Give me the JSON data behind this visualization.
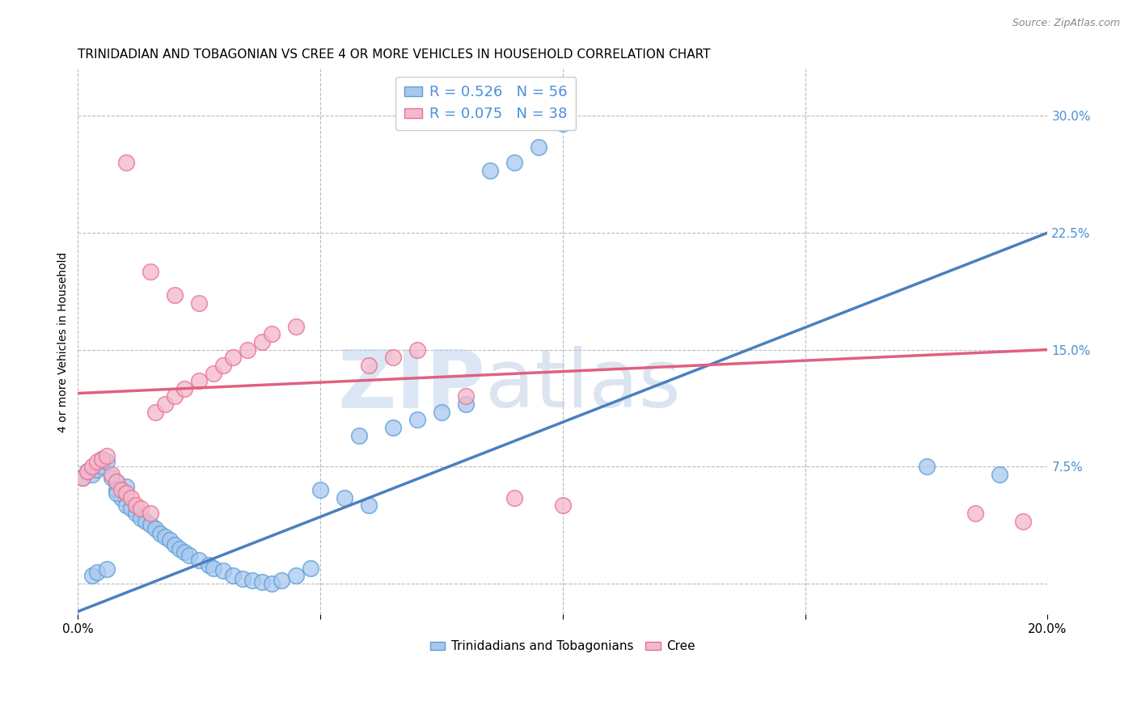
{
  "title": "TRINIDADIAN AND TOBAGONIAN VS CREE 4 OR MORE VEHICLES IN HOUSEHOLD CORRELATION CHART",
  "source": "Source: ZipAtlas.com",
  "ylabel": "4 or more Vehicles in Household",
  "xlim": [
    0.0,
    0.2
  ],
  "ylim": [
    -0.02,
    0.33
  ],
  "xticks": [
    0.0,
    0.05,
    0.1,
    0.15,
    0.2
  ],
  "xticklabels": [
    "0.0%",
    "",
    "",
    "",
    "20.0%"
  ],
  "yticks": [
    0.0,
    0.075,
    0.15,
    0.225,
    0.3
  ],
  "yticklabels": [
    "",
    "7.5%",
    "15.0%",
    "22.5%",
    "30.0%"
  ],
  "blue_R": 0.526,
  "blue_N": 56,
  "pink_R": 0.075,
  "pink_N": 38,
  "blue_color": "#A8C8F0",
  "pink_color": "#F4B8CC",
  "blue_edge_color": "#5A9FD4",
  "pink_edge_color": "#E87090",
  "blue_line_color": "#4A7FC0",
  "pink_line_color": "#E06080",
  "legend_label_blue": "Trinidadians and Tobagonians",
  "legend_label_pink": "Cree",
  "watermark_zip": "ZIP",
  "watermark_atlas": "atlas",
  "blue_line_x0": 0.0,
  "blue_line_y0": -0.018,
  "blue_line_x1": 0.2,
  "blue_line_y1": 0.225,
  "pink_line_x0": 0.0,
  "pink_line_y0": 0.122,
  "pink_line_x1": 0.2,
  "pink_line_y1": 0.15,
  "background_color": "#FFFFFF",
  "grid_color": "#BBBBBB",
  "title_fontsize": 11,
  "axis_label_fontsize": 10,
  "tick_fontsize": 11,
  "blue_x": [
    0.001,
    0.002,
    0.003,
    0.004,
    0.005,
    0.005,
    0.006,
    0.007,
    0.008,
    0.008,
    0.009,
    0.01,
    0.011,
    0.012,
    0.013,
    0.014,
    0.015,
    0.016,
    0.017,
    0.018,
    0.019,
    0.02,
    0.021,
    0.022,
    0.023,
    0.025,
    0.027,
    0.028,
    0.03,
    0.032,
    0.034,
    0.036,
    0.038,
    0.04,
    0.042,
    0.045,
    0.048,
    0.05,
    0.055,
    0.058,
    0.06,
    0.065,
    0.07,
    0.075,
    0.08,
    0.003,
    0.004,
    0.006,
    0.008,
    0.01,
    0.085,
    0.09,
    0.095,
    0.1,
    0.175,
    0.19
  ],
  "blue_y": [
    0.068,
    0.072,
    0.07,
    0.073,
    0.075,
    0.08,
    0.078,
    0.068,
    0.065,
    0.06,
    0.055,
    0.05,
    0.048,
    0.045,
    0.042,
    0.04,
    0.038,
    0.035,
    0.032,
    0.03,
    0.028,
    0.025,
    0.022,
    0.02,
    0.018,
    0.015,
    0.012,
    0.01,
    0.008,
    0.005,
    0.003,
    0.002,
    0.001,
    0.0,
    0.002,
    0.005,
    0.01,
    0.06,
    0.055,
    0.095,
    0.05,
    0.1,
    0.105,
    0.11,
    0.115,
    0.005,
    0.007,
    0.009,
    0.058,
    0.062,
    0.265,
    0.27,
    0.28,
    0.295,
    0.075,
    0.07
  ],
  "pink_x": [
    0.001,
    0.002,
    0.003,
    0.004,
    0.005,
    0.006,
    0.007,
    0.008,
    0.009,
    0.01,
    0.011,
    0.012,
    0.013,
    0.015,
    0.016,
    0.018,
    0.02,
    0.022,
    0.025,
    0.028,
    0.03,
    0.032,
    0.035,
    0.038,
    0.04,
    0.045,
    0.06,
    0.065,
    0.07,
    0.01,
    0.015,
    0.02,
    0.025,
    0.08,
    0.09,
    0.1,
    0.185,
    0.195
  ],
  "pink_y": [
    0.068,
    0.072,
    0.075,
    0.078,
    0.08,
    0.082,
    0.07,
    0.065,
    0.06,
    0.058,
    0.055,
    0.05,
    0.048,
    0.045,
    0.11,
    0.115,
    0.12,
    0.125,
    0.13,
    0.135,
    0.14,
    0.145,
    0.15,
    0.155,
    0.16,
    0.165,
    0.14,
    0.145,
    0.15,
    0.27,
    0.2,
    0.185,
    0.18,
    0.12,
    0.055,
    0.05,
    0.045,
    0.04
  ]
}
